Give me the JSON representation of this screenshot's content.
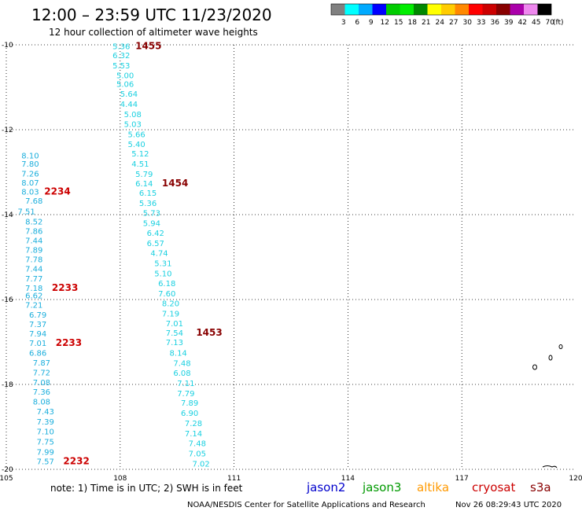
{
  "header": {
    "title": "12:00 – 23:59 UTC 11/23/2020",
    "subtitle": "12 hour collection of altimeter wave heights"
  },
  "legend": {
    "labels": [
      "3",
      "6",
      "9",
      "12",
      "15",
      "18",
      "21",
      "24",
      "27",
      "30",
      "33",
      "36",
      "39",
      "42",
      "45",
      "70"
    ],
    "unit": "(ft)",
    "colors": [
      "#808080",
      "#00ffff",
      "#00aaff",
      "#0000ff",
      "#00cc00",
      "#00ee00",
      "#008800",
      "#ffff00",
      "#ffcc00",
      "#ff8800",
      "#ff0000",
      "#cc0000",
      "#880000",
      "#aa00aa",
      "#ee88ee",
      "#000000"
    ]
  },
  "footer": {
    "note": "note:  1) Time is in UTC; 2) SWH is in feet",
    "credit": "NOAA/NESDIS Center for Satellite Applications and Research",
    "timestamp": "Nov 26 08:29:43 UTC 2020",
    "satellites": [
      {
        "name": "jason2",
        "color": "#0000cc"
      },
      {
        "name": "jason3",
        "color": "#009900"
      },
      {
        "name": "altika",
        "color": "#ff9900"
      },
      {
        "name": "cryosat",
        "color": "#cc0000"
      },
      {
        "name": "s3a",
        "color": "#880000"
      }
    ]
  },
  "chart_data": {
    "type": "scatter",
    "title": "12:00 – 23:59 UTC 11/23/2020",
    "subtitle": "12 hour collection of altimeter wave heights",
    "x_range": [
      105,
      120
    ],
    "y_range": [
      -20,
      -10
    ],
    "x_ticks": [
      "105",
      "108",
      "111",
      "114",
      "117",
      "120"
    ],
    "y_ticks": [
      "-10",
      "-12",
      "-14",
      "-16",
      "-18",
      "-20"
    ],
    "grid": true,
    "tracks": [
      {
        "name": "west",
        "color": "#1aaedc",
        "points": [
          {
            "x": 105.4,
            "y": -12.6,
            "v": "8.10"
          },
          {
            "x": 105.4,
            "y": -12.8,
            "v": "7.80"
          },
          {
            "x": 105.4,
            "y": -13.03,
            "v": "7.26"
          },
          {
            "x": 105.4,
            "y": -13.24,
            "v": "8.07"
          },
          {
            "x": 105.4,
            "y": -13.45,
            "v": "8.03"
          },
          {
            "x": 105.5,
            "y": -13.67,
            "v": "7.68"
          },
          {
            "x": 105.3,
            "y": -13.92,
            "v": "7.51"
          },
          {
            "x": 105.5,
            "y": -14.16,
            "v": "8.52"
          },
          {
            "x": 105.5,
            "y": -14.38,
            "v": "7.86"
          },
          {
            "x": 105.5,
            "y": -14.6,
            "v": "7.44"
          },
          {
            "x": 105.5,
            "y": -14.82,
            "v": "7.89"
          },
          {
            "x": 105.5,
            "y": -15.05,
            "v": "7.78"
          },
          {
            "x": 105.5,
            "y": -15.27,
            "v": "7.44"
          },
          {
            "x": 105.5,
            "y": -15.5,
            "v": "7.77"
          },
          {
            "x": 105.5,
            "y": -15.72,
            "v": "7.18"
          },
          {
            "x": 105.5,
            "y": -15.9,
            "v": "6.62"
          },
          {
            "x": 105.5,
            "y": -16.12,
            "v": "7.21"
          },
          {
            "x": 105.6,
            "y": -16.35,
            "v": "6.79"
          },
          {
            "x": 105.6,
            "y": -16.57,
            "v": "7.37"
          },
          {
            "x": 105.6,
            "y": -16.8,
            "v": "7.94"
          },
          {
            "x": 105.6,
            "y": -17.02,
            "v": "7.01"
          },
          {
            "x": 105.6,
            "y": -17.25,
            "v": "6.86"
          },
          {
            "x": 105.7,
            "y": -17.48,
            "v": "7.87"
          },
          {
            "x": 105.7,
            "y": -17.71,
            "v": "7.72"
          },
          {
            "x": 105.7,
            "y": -17.94,
            "v": "7.08"
          },
          {
            "x": 105.7,
            "y": -18.17,
            "v": "7.36"
          },
          {
            "x": 105.7,
            "y": -18.4,
            "v": "8.08"
          },
          {
            "x": 105.8,
            "y": -18.63,
            "v": "7.43"
          },
          {
            "x": 105.8,
            "y": -18.87,
            "v": "7.39"
          },
          {
            "x": 105.8,
            "y": -19.1,
            "v": "7.10"
          },
          {
            "x": 105.8,
            "y": -19.34,
            "v": "7.75"
          },
          {
            "x": 105.8,
            "y": -19.58,
            "v": "7.99"
          },
          {
            "x": 105.8,
            "y": -19.81,
            "v": "7.57"
          }
        ]
      },
      {
        "name": "east",
        "color": "#1ad0e0",
        "points": [
          {
            "x": 107.8,
            "y": -10.03,
            "v": "5.36"
          },
          {
            "x": 107.8,
            "y": -10.24,
            "v": "6.32"
          },
          {
            "x": 107.8,
            "y": -10.48,
            "v": "5.53"
          },
          {
            "x": 107.9,
            "y": -10.71,
            "v": "5.00"
          },
          {
            "x": 107.9,
            "y": -10.92,
            "v": "5.06"
          },
          {
            "x": 108.0,
            "y": -11.15,
            "v": "5.64"
          },
          {
            "x": 108.0,
            "y": -11.39,
            "v": "4.44"
          },
          {
            "x": 108.1,
            "y": -11.63,
            "v": "5.08"
          },
          {
            "x": 108.1,
            "y": -11.86,
            "v": "5.03"
          },
          {
            "x": 108.2,
            "y": -12.1,
            "v": "5.66"
          },
          {
            "x": 108.2,
            "y": -12.33,
            "v": "5.40"
          },
          {
            "x": 108.3,
            "y": -12.56,
            "v": "5.12"
          },
          {
            "x": 108.3,
            "y": -12.8,
            "v": "4.51"
          },
          {
            "x": 108.4,
            "y": -13.04,
            "v": "5.79"
          },
          {
            "x": 108.4,
            "y": -13.26,
            "v": "6.14"
          },
          {
            "x": 108.5,
            "y": -13.48,
            "v": "6.15"
          },
          {
            "x": 108.5,
            "y": -13.72,
            "v": "5.36"
          },
          {
            "x": 108.6,
            "y": -13.95,
            "v": "5.73"
          },
          {
            "x": 108.6,
            "y": -14.19,
            "v": "5.94"
          },
          {
            "x": 108.7,
            "y": -14.43,
            "v": "6.42"
          },
          {
            "x": 108.7,
            "y": -14.67,
            "v": "6.57"
          },
          {
            "x": 108.8,
            "y": -14.9,
            "v": "4.74"
          },
          {
            "x": 108.9,
            "y": -15.14,
            "v": "5.31"
          },
          {
            "x": 108.9,
            "y": -15.38,
            "v": "5.10"
          },
          {
            "x": 109.0,
            "y": -15.61,
            "v": "6.18"
          },
          {
            "x": 109.0,
            "y": -15.85,
            "v": "7.60"
          },
          {
            "x": 109.1,
            "y": -16.08,
            "v": "8.20"
          },
          {
            "x": 109.1,
            "y": -16.32,
            "v": "7.19"
          },
          {
            "x": 109.2,
            "y": -16.56,
            "v": "7.01"
          },
          {
            "x": 109.2,
            "y": -16.78,
            "v": "7.54"
          },
          {
            "x": 109.2,
            "y": -17.0,
            "v": "7.13"
          },
          {
            "x": 109.3,
            "y": -17.25,
            "v": "8.14"
          },
          {
            "x": 109.4,
            "y": -17.49,
            "v": "7.48"
          },
          {
            "x": 109.4,
            "y": -17.72,
            "v": "6.08"
          },
          {
            "x": 109.5,
            "y": -17.96,
            "v": "7.11"
          },
          {
            "x": 109.5,
            "y": -18.2,
            "v": "7.79"
          },
          {
            "x": 109.6,
            "y": -18.43,
            "v": "7.89"
          },
          {
            "x": 109.6,
            "y": -18.67,
            "v": "6.90"
          },
          {
            "x": 109.7,
            "y": -18.91,
            "v": "7.28"
          },
          {
            "x": 109.7,
            "y": -19.15,
            "v": "7.14"
          },
          {
            "x": 109.8,
            "y": -19.38,
            "v": "7.48"
          },
          {
            "x": 109.8,
            "y": -19.62,
            "v": "7.05"
          },
          {
            "x": 109.9,
            "y": -19.86,
            "v": "7.02"
          }
        ]
      }
    ],
    "time_labels": [
      {
        "x": 108.4,
        "y": -10.03,
        "t": "1455",
        "color": "#880000"
      },
      {
        "x": 109.1,
        "y": -13.26,
        "t": "1454",
        "color": "#880000"
      },
      {
        "x": 110.0,
        "y": -16.78,
        "t": "1453",
        "color": "#880000"
      },
      {
        "x": 106.0,
        "y": -13.45,
        "t": "2234",
        "color": "#cc0000"
      },
      {
        "x": 106.2,
        "y": -15.72,
        "t": "2233",
        "color": "#cc0000"
      },
      {
        "x": 106.3,
        "y": -17.02,
        "t": "2233",
        "color": "#cc0000"
      },
      {
        "x": 106.5,
        "y": -19.81,
        "t": "2232",
        "color": "#cc0000"
      }
    ]
  }
}
